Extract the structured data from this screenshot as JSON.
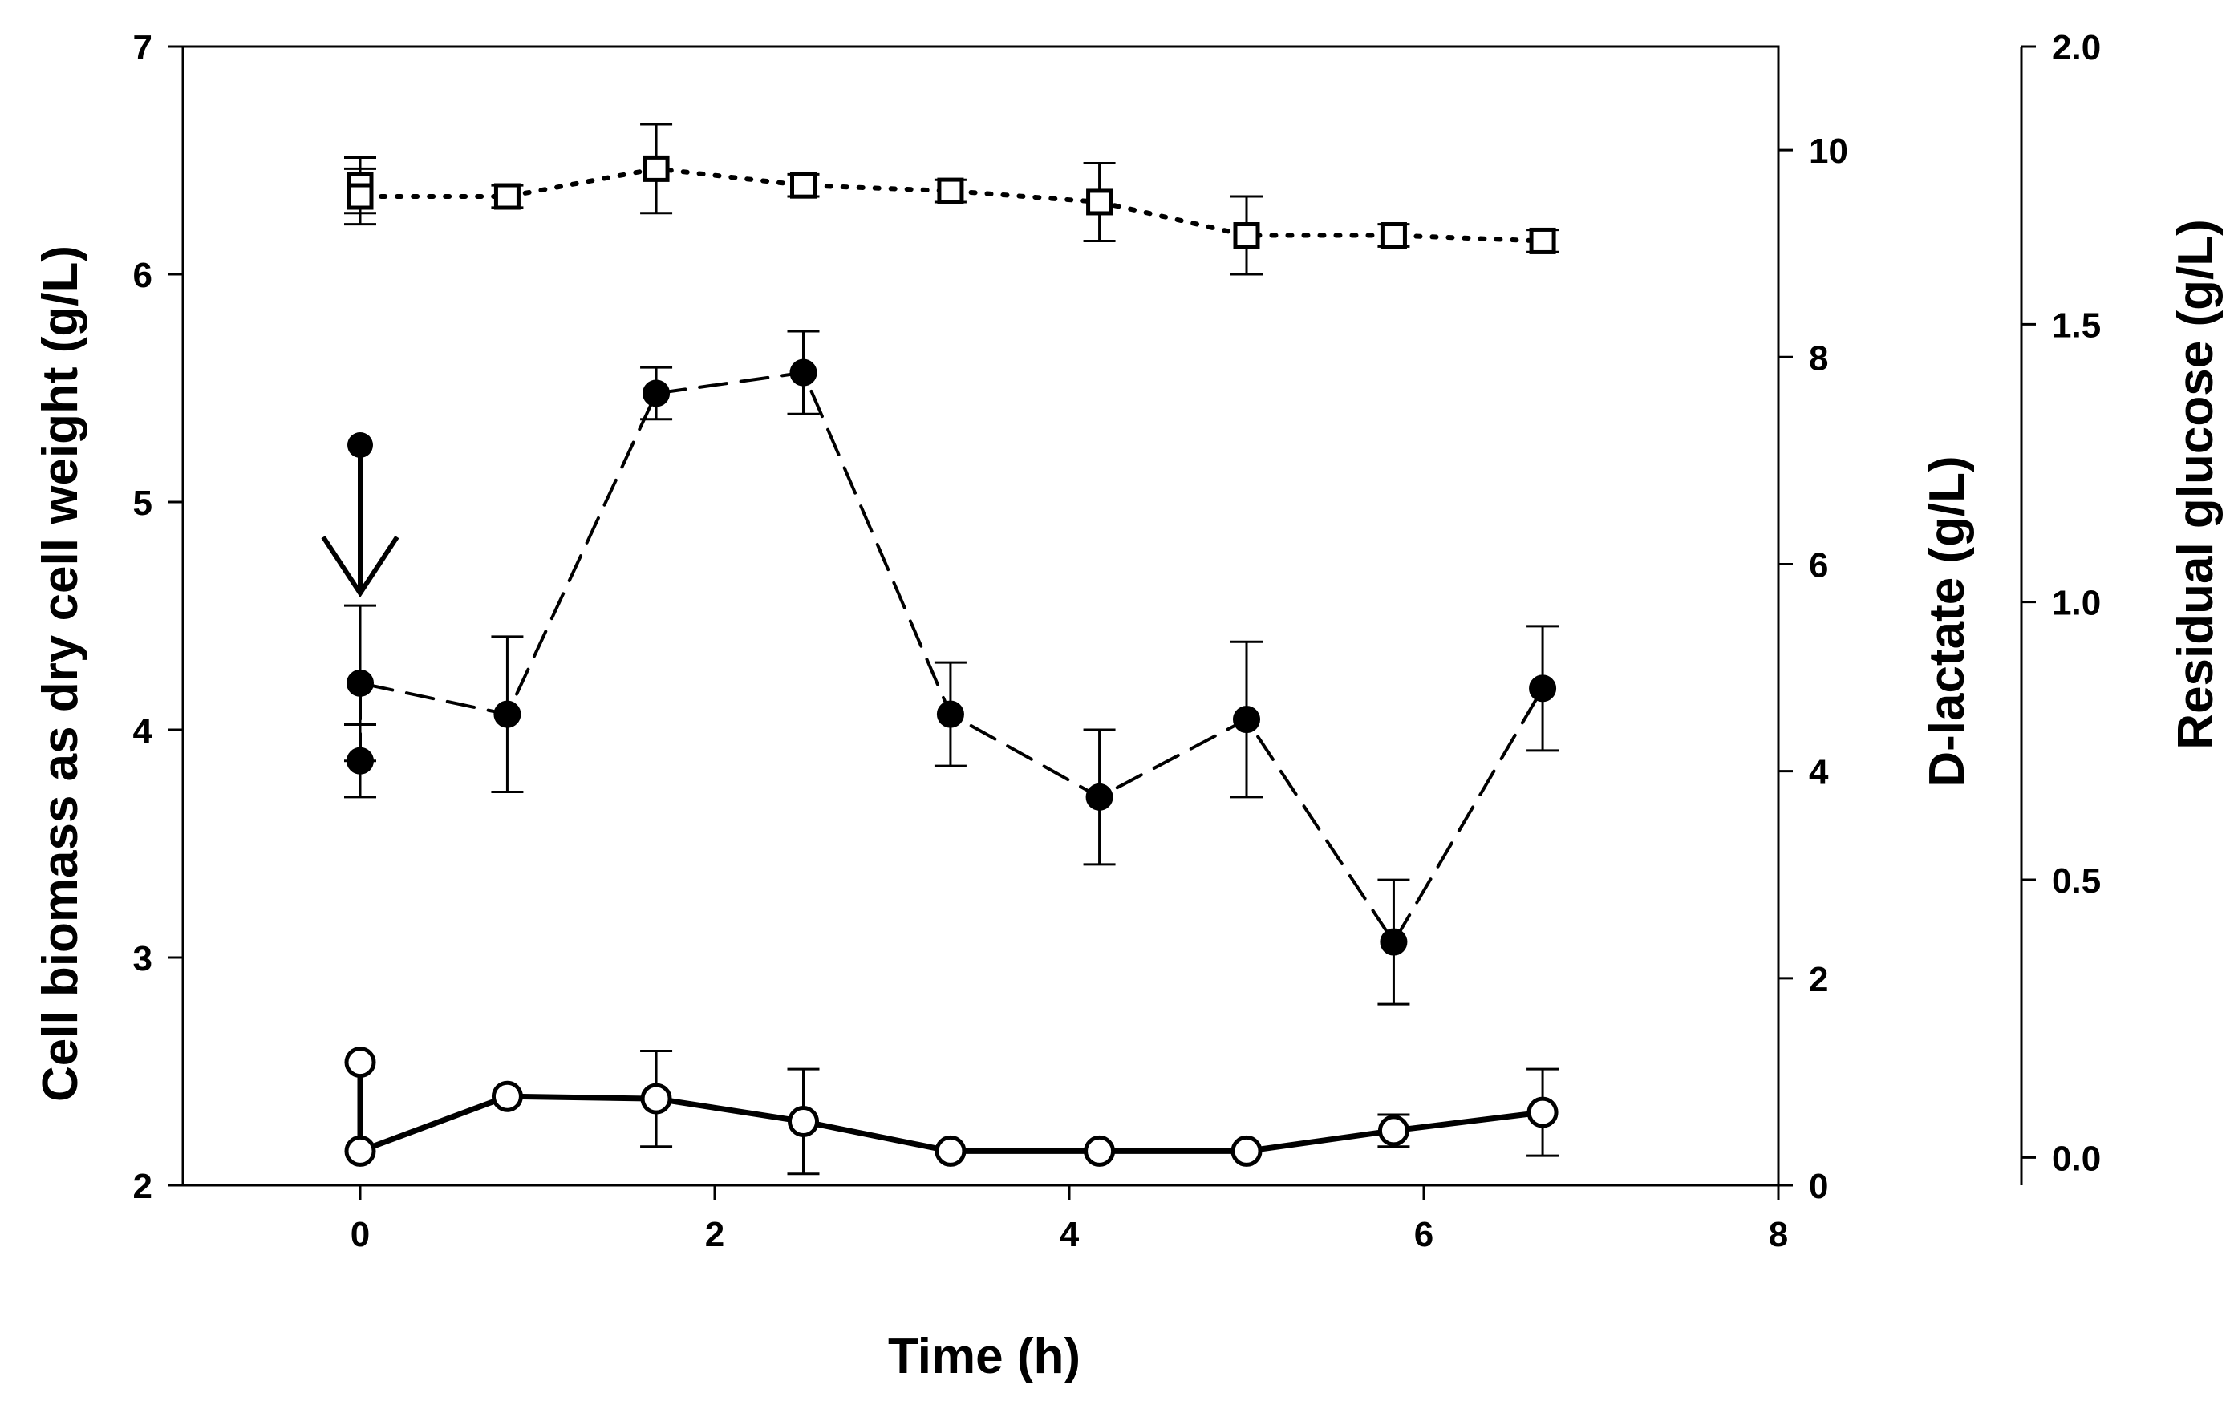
{
  "chart_data": {
    "type": "line",
    "title": "",
    "xlabel": "Time (h)",
    "ylabel": "Cell biomass as dry cell weight (g/L)",
    "y2label": "D-lactate (g/L)",
    "y3label": "Residual glucose (g/L)",
    "xlim": [
      -1,
      8
    ],
    "ylim": [
      2,
      7
    ],
    "y2lim": [
      0,
      11
    ],
    "y3lim": [
      -0.05,
      2.0
    ],
    "x_ticks": [
      "0",
      "2",
      "4",
      "6",
      "8"
    ],
    "y_ticks": [
      "2",
      "3",
      "4",
      "5",
      "6",
      "7"
    ],
    "y2_ticks": [
      "0",
      "2",
      "4",
      "6",
      "8",
      "10"
    ],
    "y3_ticks": [
      "0.0",
      "0.5",
      "1.0",
      "1.5",
      "2.0"
    ],
    "annotation": "arrow at time 0 indicating addition (drop from ~5.25 to ~4.2 g/L)",
    "series": [
      {
        "name": "Residual glucose",
        "axis": "y3",
        "marker": "open-square",
        "line": "dotted",
        "x": [
          0,
          0,
          0.83,
          1.67,
          2.5,
          3.33,
          4.17,
          5.0,
          5.83,
          6.67
        ],
        "y": [
          1.75,
          1.73,
          1.73,
          1.78,
          1.75,
          1.74,
          1.72,
          1.66,
          1.66,
          1.65
        ],
        "err": [
          0.05,
          0.05,
          0.02,
          0.08,
          0.02,
          0.02,
          0.07,
          0.07,
          0.02,
          0.02
        ]
      },
      {
        "name": "D-lactate",
        "axis": "y2",
        "marker": "filled-circle",
        "line": "dashed",
        "x": [
          0,
          0,
          0.83,
          1.67,
          2.5,
          3.33,
          4.17,
          5.0,
          5.83,
          6.67
        ],
        "y": [
          4.1,
          4.85,
          4.55,
          7.65,
          7.85,
          4.55,
          3.75,
          4.5,
          2.35,
          4.8
        ],
        "err": [
          0.35,
          0.75,
          0.75,
          0.25,
          0.4,
          0.5,
          0.65,
          0.75,
          0.6,
          0.6
        ]
      },
      {
        "name": "Cell biomass",
        "axis": "y",
        "marker": "open-circle",
        "line": "solid",
        "x": [
          0,
          0,
          0.83,
          1.67,
          2.5,
          3.33,
          4.17,
          5.0,
          5.83,
          6.67
        ],
        "y": [
          2.54,
          2.15,
          2.39,
          2.38,
          2.28,
          2.15,
          2.15,
          2.15,
          2.24,
          2.32
        ],
        "err": [
          0,
          0,
          0,
          0.21,
          0.23,
          0,
          0,
          0,
          0.07,
          0.19
        ]
      }
    ]
  }
}
